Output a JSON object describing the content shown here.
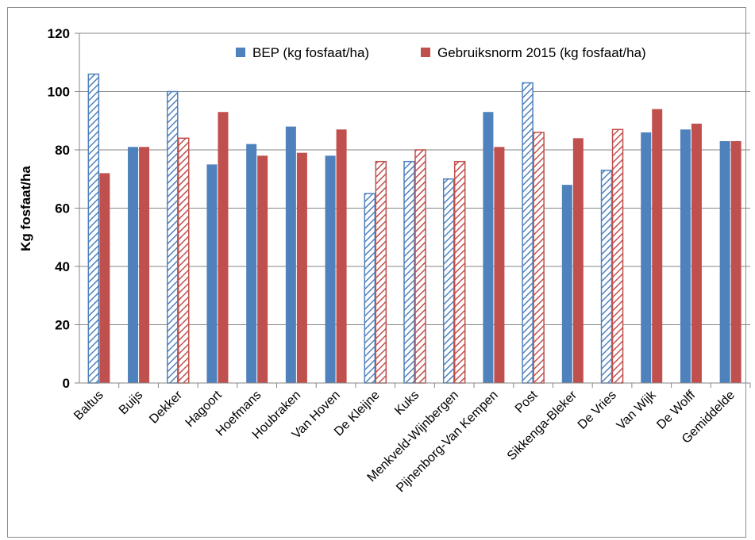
{
  "chart_data": {
    "type": "bar",
    "title": "",
    "xlabel": "",
    "ylabel": "Kg fosfaat/ha",
    "ylim": [
      0,
      120
    ],
    "yticks": [
      0,
      20,
      40,
      60,
      80,
      100,
      120
    ],
    "grid": true,
    "legend_position": "top",
    "categories": [
      "Baltus",
      "Buijs",
      "Dekker",
      "Hagoort",
      "Hoefmans",
      "Houbraken",
      "Van Hoven",
      "De Kleijne",
      "Kuks",
      "Menkveld-Wijnbergen",
      "Pijnenborg-Van Kempen",
      "Post",
      "Sikkenga-Bleker",
      "De Vries",
      "Van Wijk",
      "De Wolff",
      "Gemiddelde"
    ],
    "series": [
      {
        "name": "BEP (kg fosfaat/ha)",
        "color": "#4f81bd",
        "values": [
          106,
          81,
          100,
          75,
          82,
          88,
          78,
          65,
          76,
          70,
          93,
          103,
          68,
          73,
          86,
          87,
          83
        ],
        "hatched": [
          true,
          false,
          true,
          false,
          false,
          false,
          false,
          true,
          true,
          true,
          false,
          true,
          false,
          true,
          false,
          false,
          false
        ]
      },
      {
        "name": "Gebruiksnorm 2015 (kg fosfaat/ha)",
        "color": "#c0504d",
        "values": [
          72,
          81,
          84,
          93,
          78,
          79,
          87,
          76,
          80,
          76,
          81,
          86,
          84,
          87,
          94,
          89,
          83
        ],
        "hatched": [
          false,
          false,
          true,
          false,
          false,
          false,
          false,
          true,
          true,
          true,
          false,
          true,
          false,
          true,
          false,
          false,
          false
        ]
      }
    ]
  }
}
